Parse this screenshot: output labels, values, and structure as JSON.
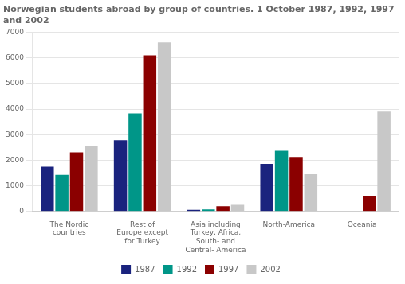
{
  "chart_data": {
    "type": "bar",
    "title": "Norwegian students abroad by group of countries. 1 October 1987, 1992, 1997\nand 2002",
    "categories": [
      "The Nordic\ncountries",
      "Rest of\nEurope except\nfor Turkey",
      "Asia including\nTurkey, Africa,\nSouth- and\nCentral- America",
      "North-America",
      "Oceania"
    ],
    "series": [
      {
        "name": "1987",
        "color": "#1a237e",
        "values": [
          1750,
          2780,
          60,
          1860,
          0
        ]
      },
      {
        "name": "1992",
        "color": "#009688",
        "values": [
          1430,
          3830,
          80,
          2370,
          0
        ]
      },
      {
        "name": "1997",
        "color": "#8b0000",
        "values": [
          2310,
          6100,
          200,
          2130,
          580
        ]
      },
      {
        "name": "2002",
        "color": "#c8c8c8",
        "values": [
          2540,
          6600,
          260,
          1450,
          3900
        ]
      }
    ],
    "ylim": [
      0,
      7000
    ],
    "yticks": [
      0,
      1000,
      2000,
      3000,
      4000,
      5000,
      6000,
      7000
    ],
    "grid": true,
    "legend": "bottom"
  }
}
